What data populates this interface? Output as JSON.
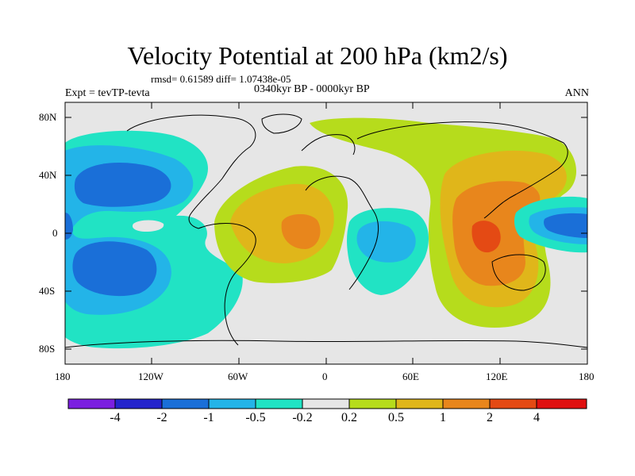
{
  "title": "Velocity Potential at 200 hPa (km2/s)",
  "stats": "rmsd= 0.61589 diff= 1.07438e-05",
  "period": "0340kyr BP - 0000kyr BP",
  "experiment": "Expt = tevTP-tevta",
  "season": "ANN",
  "y_axis_labels": [
    "80N",
    "40N",
    "0",
    "40S",
    "80S"
  ],
  "x_axis_labels": [
    "180",
    "120W",
    "60W",
    "0",
    "60E",
    "120E",
    "180"
  ],
  "colorbar": {
    "labels": [
      "-4",
      "-2",
      "-1",
      "-0.5",
      "-0.2",
      "0.2",
      "0.5",
      "1",
      "2",
      "4"
    ],
    "colors": [
      "#7b1fe0",
      "#2424cc",
      "#1a6fd8",
      "#23b4e8",
      "#21e3c4",
      "#e6e6e6",
      "#b6dc1c",
      "#e0b61a",
      "#e8861c",
      "#e44a14",
      "#e01010"
    ]
  },
  "palette": {
    "ocean_bg": "#e6e6e6",
    "cyan_neg_small": "#21e3c4",
    "lightblue": "#23b4e8",
    "blue": "#1a6fd8",
    "green_pos_small": "#b6dc1c",
    "yellow_orange": "#e0b61a",
    "orange": "#e8861c",
    "red_orange": "#e44a14"
  }
}
